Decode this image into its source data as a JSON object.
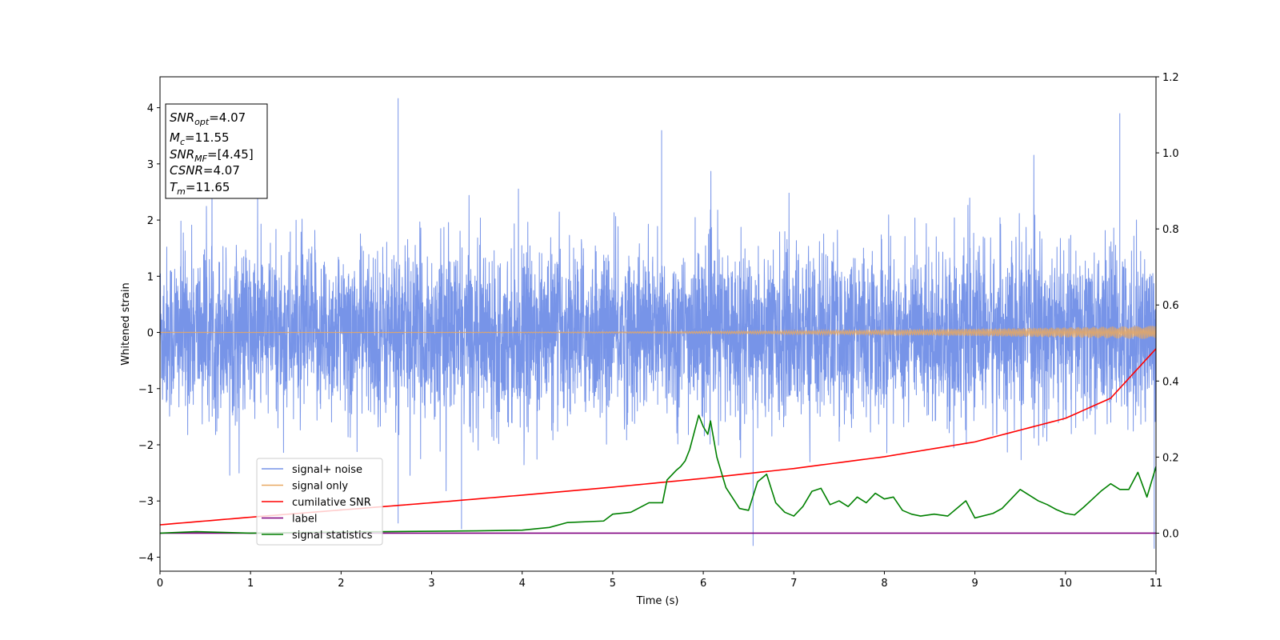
{
  "chart_data": {
    "type": "line",
    "xlabel": "Time (s)",
    "ylabel": "Whitened strain",
    "xlim": [
      0,
      11
    ],
    "ylim": [
      -4.25,
      4.55
    ],
    "y2lim": [
      -0.1,
      1.2
    ],
    "x_ticks": [
      "0",
      "1",
      "2",
      "3",
      "4",
      "5",
      "6",
      "7",
      "8",
      "9",
      "10",
      "11"
    ],
    "y_ticks": [
      "−4",
      "−3",
      "−2",
      "−1",
      "0",
      "1",
      "2",
      "3",
      "4"
    ],
    "y2_ticks": [
      "0.0",
      "0.2",
      "0.4",
      "0.6",
      "0.8",
      "1.0",
      "1.2"
    ],
    "info_box": {
      "snr_opt": {
        "sym": "SNR",
        "sub": "opt",
        "value": "=4.07"
      },
      "mc": {
        "sym": "M",
        "sub": "c",
        "value": "=11.55"
      },
      "snr_mf": {
        "sym": "SNR",
        "sub": "MF",
        "value": "=[4.45]"
      },
      "csnr": {
        "sym": "CSNR",
        "sub": "",
        "value": "=4.07"
      },
      "tm": {
        "sym": "T",
        "sub": "m",
        "value": "=11.65"
      }
    },
    "legend": {
      "position": "lower-left",
      "entries": [
        "signal+ noise",
        "signal only",
        "cumilative SNR",
        "label",
        "signal statistics"
      ]
    },
    "series": [
      {
        "name": "signal+ noise",
        "color": "#7794e8",
        "axis": "left",
        "description_points": [
          [
            0.0,
            2.1
          ],
          [
            2.63,
            4.17
          ],
          [
            2.63,
            -3.4
          ],
          [
            3.33,
            -3.5
          ],
          [
            5.54,
            3.6
          ],
          [
            6.55,
            -3.8
          ],
          [
            10.6,
            3.9
          ],
          [
            10.98,
            -3.85
          ]
        ],
        "noise_std": 0.75
      },
      {
        "name": "signal only",
        "color": "#e8a860",
        "axis": "left",
        "amplitude_start": 0.0,
        "amplitude_end": 0.12
      },
      {
        "name": "cumilative SNR",
        "color": "#ff0000",
        "axis": "right",
        "x": [
          0,
          1,
          2,
          3,
          4,
          5,
          6,
          7,
          8,
          9,
          10,
          10.5,
          11
        ],
        "y": [
          0.022,
          0.042,
          0.061,
          0.08,
          0.1,
          0.121,
          0.144,
          0.17,
          0.201,
          0.24,
          0.302,
          0.355,
          0.485
        ]
      },
      {
        "name": "label",
        "color": "#800080",
        "axis": "right",
        "x": [
          0,
          11
        ],
        "y": [
          0.0,
          0.0
        ]
      },
      {
        "name": "signal statistics",
        "color": "#008000",
        "axis": "right",
        "x": [
          0,
          0.4,
          1,
          2,
          3,
          3.5,
          4,
          4.3,
          4.5,
          4.9,
          5.0,
          5.2,
          5.4,
          5.55,
          5.6,
          5.7,
          5.75,
          5.8,
          5.85,
          5.95,
          6.0,
          6.05,
          6.08,
          6.15,
          6.25,
          6.4,
          6.5,
          6.6,
          6.7,
          6.8,
          6.9,
          7.0,
          7.1,
          7.2,
          7.3,
          7.4,
          7.5,
          7.6,
          7.7,
          7.8,
          7.9,
          8.0,
          8.1,
          8.2,
          8.3,
          8.4,
          8.55,
          8.7,
          8.9,
          9.0,
          9.2,
          9.3,
          9.4,
          9.5,
          9.6,
          9.7,
          9.8,
          9.9,
          10.0,
          10.1,
          10.2,
          10.3,
          10.4,
          10.5,
          10.6,
          10.7,
          10.8,
          10.9,
          11.0
        ],
        "y": [
          0.0,
          0.004,
          0.0,
          0.003,
          0.005,
          0.006,
          0.008,
          0.015,
          0.028,
          0.032,
          0.05,
          0.055,
          0.08,
          0.08,
          0.14,
          0.165,
          0.175,
          0.19,
          0.22,
          0.31,
          0.28,
          0.26,
          0.295,
          0.2,
          0.12,
          0.065,
          0.06,
          0.135,
          0.155,
          0.08,
          0.055,
          0.045,
          0.07,
          0.11,
          0.118,
          0.075,
          0.085,
          0.07,
          0.095,
          0.08,
          0.105,
          0.09,
          0.095,
          0.06,
          0.05,
          0.045,
          0.05,
          0.045,
          0.085,
          0.04,
          0.052,
          0.065,
          0.09,
          0.115,
          0.1,
          0.085,
          0.075,
          0.062,
          0.052,
          0.048,
          0.068,
          0.09,
          0.112,
          0.13,
          0.115,
          0.115,
          0.16,
          0.095,
          0.175
        ]
      }
    ]
  }
}
